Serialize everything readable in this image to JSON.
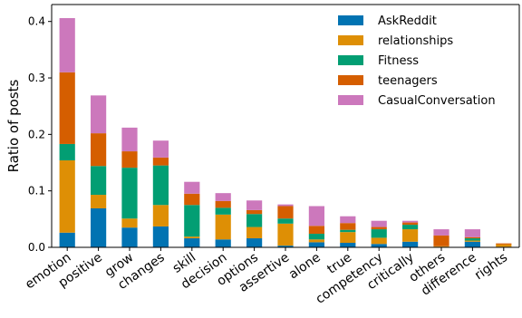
{
  "chart_data": {
    "type": "bar",
    "stacked": true,
    "xlabel": "",
    "ylabel": "Ratio of posts",
    "ylim": [
      0,
      0.43
    ],
    "yticks": [
      "0.0",
      "0.1",
      "0.2",
      "0.3",
      "0.4"
    ],
    "ytick_values": [
      0.0,
      0.1,
      0.2,
      0.3,
      0.4
    ],
    "grid": false,
    "legend_position": "top-right",
    "categories": [
      "emotion",
      "positive",
      "grow",
      "changes",
      "skill",
      "decision",
      "options",
      "assertive",
      "alone",
      "true",
      "competency",
      "critically",
      "others",
      "difference",
      "rights"
    ],
    "series": [
      {
        "name": "AskReddit",
        "color": "#0173b2",
        "values": [
          0.026,
          0.069,
          0.035,
          0.037,
          0.016,
          0.014,
          0.016,
          0.003,
          0.009,
          0.008,
          0.006,
          0.01,
          0.001,
          0.01,
          0.001
        ]
      },
      {
        "name": "relationships",
        "color": "#de8f05",
        "values": [
          0.128,
          0.024,
          0.016,
          0.038,
          0.003,
          0.044,
          0.02,
          0.039,
          0.005,
          0.019,
          0.011,
          0.022,
          0.001,
          0.002,
          0.004
        ]
      },
      {
        "name": "Fitness",
        "color": "#029e73",
        "values": [
          0.029,
          0.051,
          0.09,
          0.07,
          0.056,
          0.012,
          0.023,
          0.009,
          0.01,
          0.004,
          0.015,
          0.008,
          0.0,
          0.004,
          0.0
        ]
      },
      {
        "name": "teenagers",
        "color": "#d55e00",
        "values": [
          0.127,
          0.058,
          0.029,
          0.014,
          0.02,
          0.012,
          0.007,
          0.022,
          0.014,
          0.012,
          0.004,
          0.004,
          0.019,
          0.002,
          0.002
        ]
      },
      {
        "name": "CasualConversation",
        "color": "#cc78bc",
        "values": [
          0.096,
          0.067,
          0.042,
          0.03,
          0.021,
          0.014,
          0.017,
          0.003,
          0.035,
          0.012,
          0.011,
          0.003,
          0.011,
          0.014,
          0.0
        ]
      }
    ]
  }
}
